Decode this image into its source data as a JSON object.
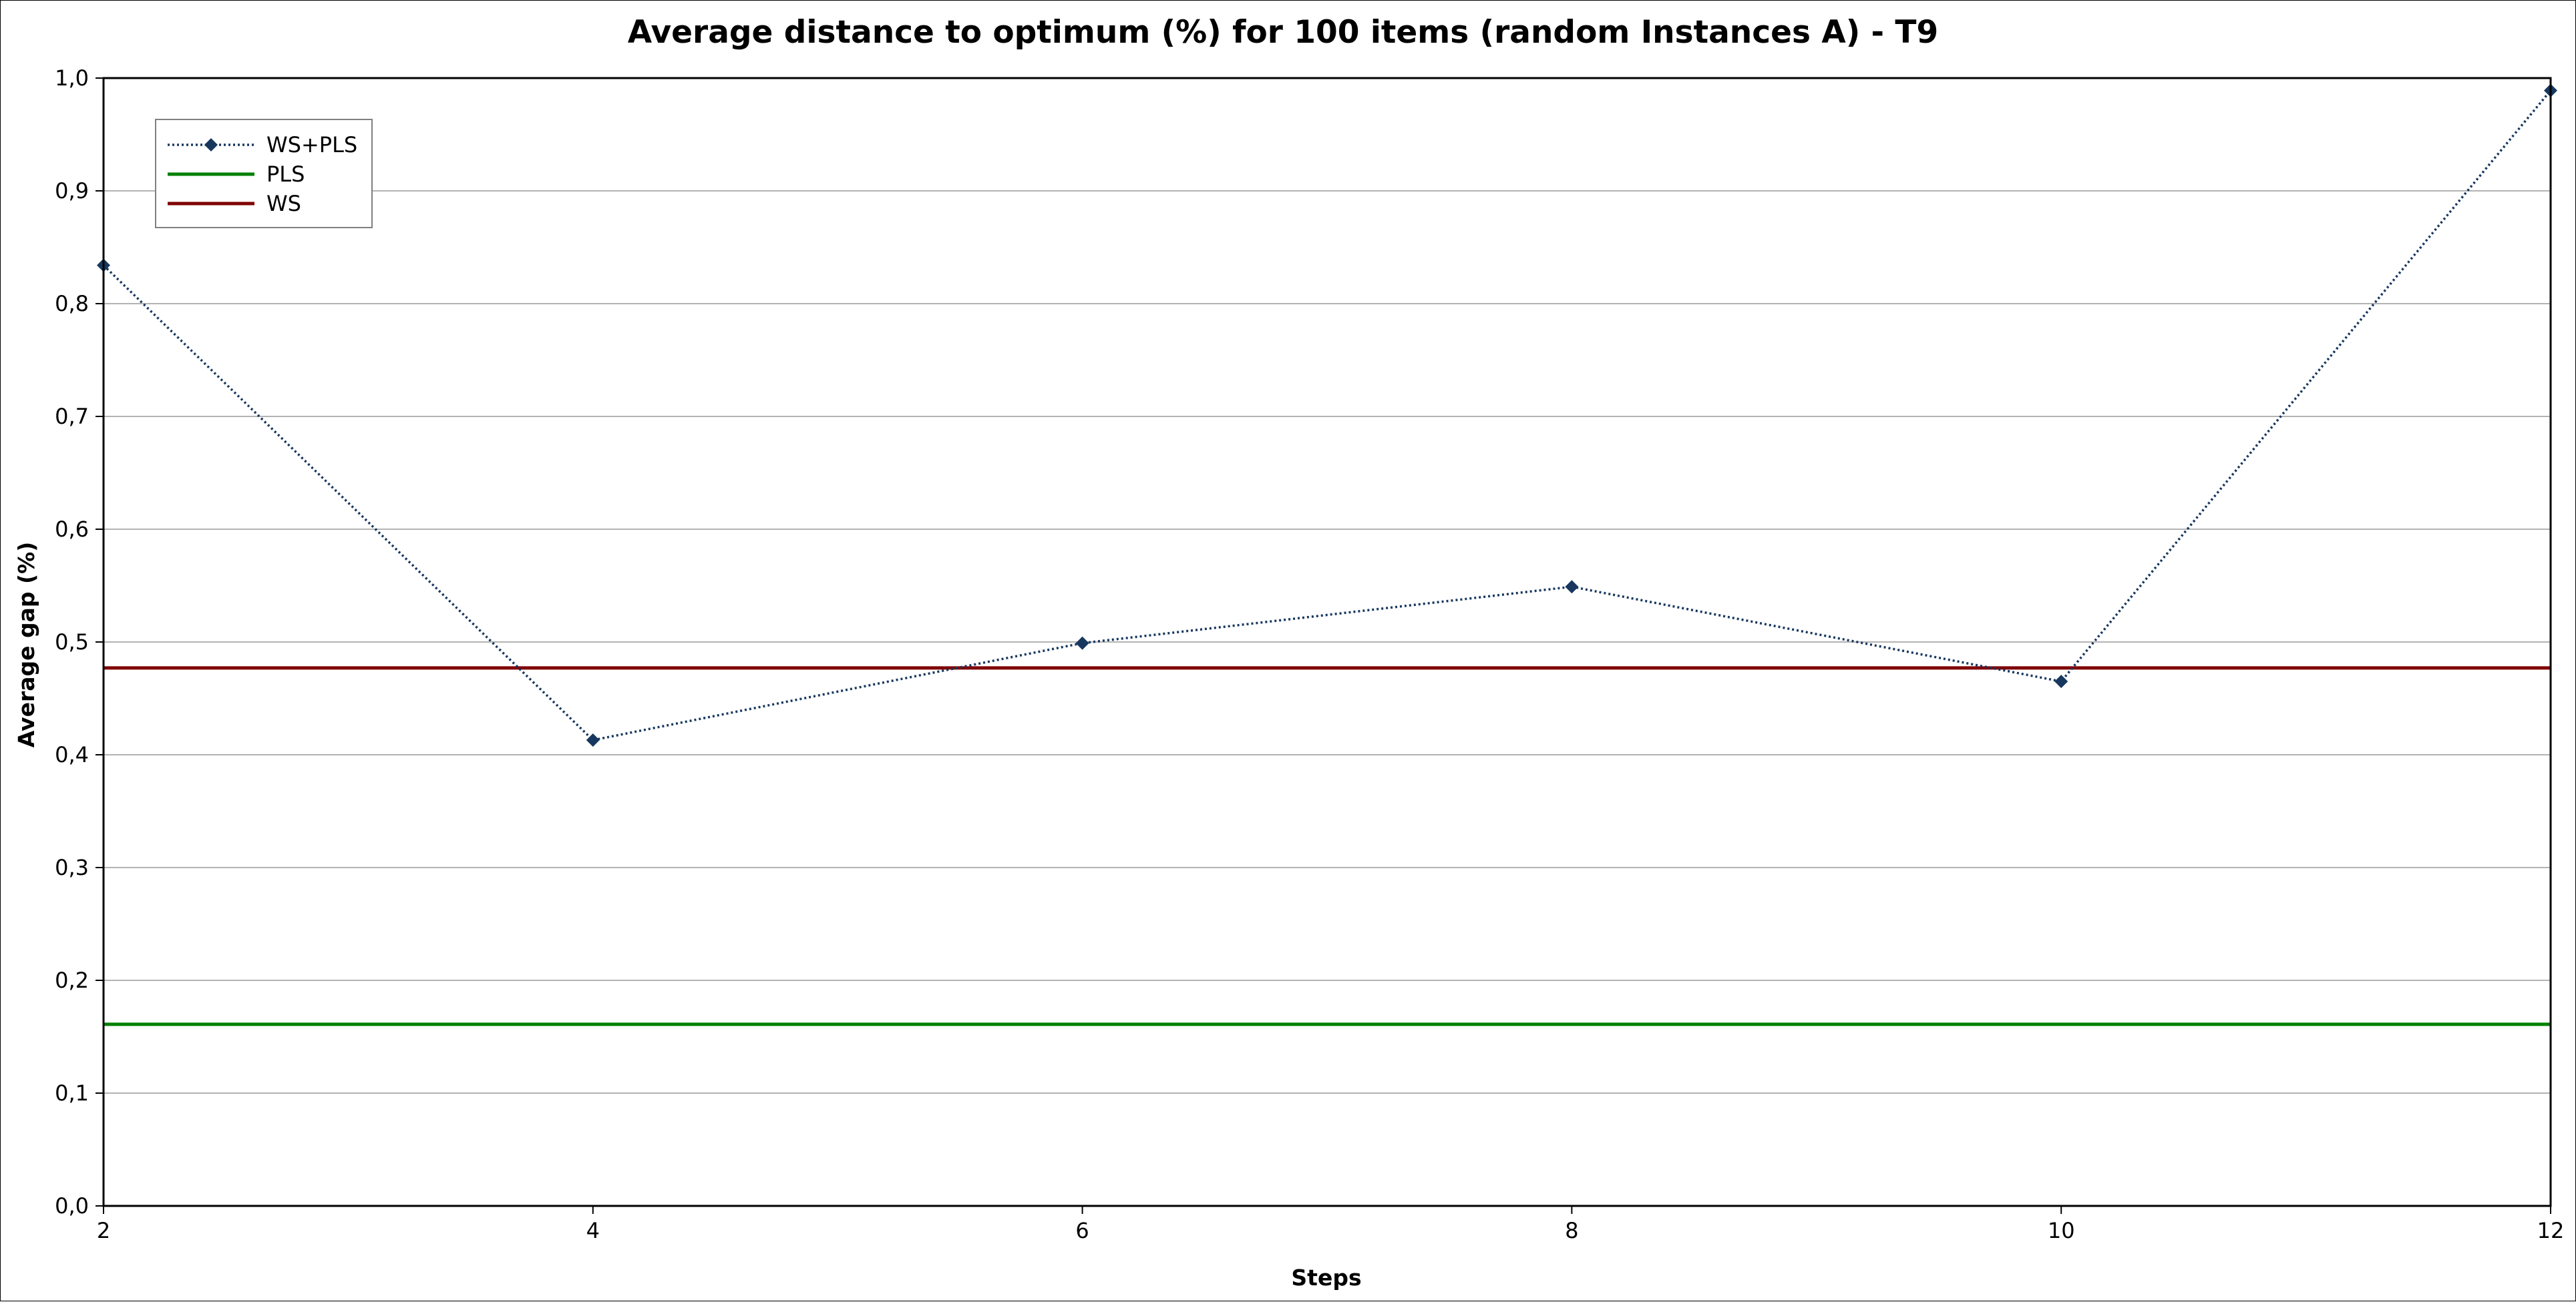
{
  "chart_data": {
    "type": "line",
    "title": "Average distance to optimum (%) for 100 items (random Instances A) - T9",
    "xlabel": "Steps",
    "ylabel": "Average gap (%)",
    "x": [
      2,
      4,
      6,
      8,
      10,
      12
    ],
    "xlim": [
      2,
      12
    ],
    "ylim": [
      0,
      1
    ],
    "x_ticks": [
      "2",
      "4",
      "6",
      "8",
      "10",
      "12"
    ],
    "y_ticks": [
      "0,0",
      "0,1",
      "0,2",
      "0,3",
      "0,4",
      "0,5",
      "0,6",
      "0,7",
      "0,8",
      "0,9",
      "1,0"
    ],
    "grid": "horizontal",
    "legend_position": "top-left",
    "series": [
      {
        "name": "WS+PLS",
        "style": "dotted-with-diamond-markers",
        "color": "#17375e",
        "values": [
          0.834,
          0.413,
          0.499,
          0.549,
          0.465,
          0.989
        ]
      },
      {
        "name": "PLS",
        "style": "solid-constant",
        "color": "#008000",
        "values": [
          0.161,
          0.161,
          0.161,
          0.161,
          0.161,
          0.161
        ]
      },
      {
        "name": "WS",
        "style": "solid-constant",
        "color": "#800000",
        "values": [
          0.477,
          0.477,
          0.477,
          0.477,
          0.477,
          0.477
        ]
      }
    ]
  }
}
